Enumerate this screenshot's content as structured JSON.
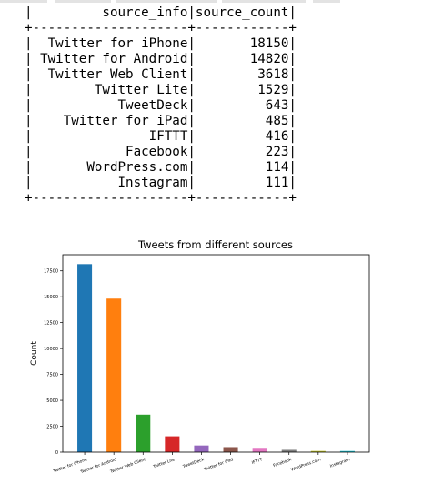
{
  "table": {
    "header": [
      "source_info",
      "source_count"
    ],
    "widths": [
      20,
      12
    ],
    "rows": [
      [
        "Twitter for iPhone",
        "18150"
      ],
      [
        "Twitter for Android",
        "14820"
      ],
      [
        "Twitter Web Client",
        "3618"
      ],
      [
        "Twitter Lite",
        "1529"
      ],
      [
        "TweetDeck",
        "643"
      ],
      [
        "Twitter for iPad",
        "485"
      ],
      [
        "IFTTT",
        "416"
      ],
      [
        "Facebook",
        "223"
      ],
      [
        "WordPress.com",
        "114"
      ],
      [
        "Instagram",
        "111"
      ]
    ]
  },
  "chart_data": {
    "type": "bar",
    "title": "Tweets from different sources",
    "xlabel": "",
    "ylabel": "Count",
    "categories": [
      "Twitter for iPhone",
      "Twitter for Android",
      "Twitter Web Client",
      "Twitter Lite",
      "TweetDeck",
      "Twitter for iPad",
      "IFTTT",
      "Facebook",
      "WordPress.com",
      "Instagram"
    ],
    "values": [
      18150,
      14820,
      3618,
      1529,
      643,
      485,
      416,
      223,
      114,
      111
    ],
    "colors": [
      "#1f77b4",
      "#ff7f0e",
      "#2ca02c",
      "#d62728",
      "#9467bd",
      "#8c564b",
      "#e377c2",
      "#7f7f7f",
      "#bcbd22",
      "#17becf"
    ],
    "yticks": [
      0,
      2500,
      5000,
      7500,
      10000,
      12500,
      15000,
      17500
    ],
    "ylim": [
      0,
      19057
    ],
    "grid": false,
    "legend": "none"
  }
}
